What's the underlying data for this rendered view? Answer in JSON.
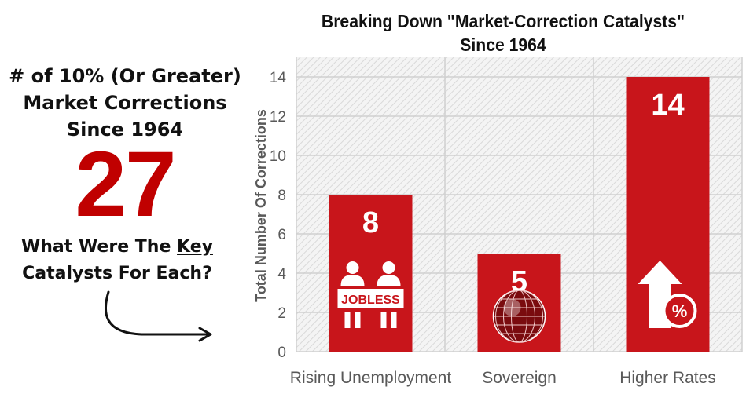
{
  "left_panel": {
    "headline_line1": "# of 10% (Or Greater)",
    "headline_line2": "Market Corrections",
    "headline_line3": "Since 1964",
    "big_number": "27",
    "question_line1_prefix": "What Were The ",
    "question_line1_underlined": "Key",
    "question_line2": "Catalysts For Each?"
  },
  "colors": {
    "accent": "#c00000",
    "bar": "#c8151b",
    "grid": "#d0d0d0",
    "axis_text": "#595959"
  },
  "chart_data": {
    "type": "bar",
    "title": "Breaking Down \"Market-Correction Catalysts\" Since 1964",
    "title_line1": "Breaking Down \"Market-Correction Catalysts\"",
    "title_line2": "Since 1964",
    "xlabel": "",
    "ylabel": "Total Number Of Corrections",
    "categories": [
      "Rising Unemployment",
      "Sovereign",
      "Higher Rates"
    ],
    "values": [
      8,
      5,
      14
    ],
    "data_labels": [
      "8",
      "5",
      "14"
    ],
    "ylim": [
      0,
      14
    ],
    "yticks": [
      0,
      2,
      4,
      6,
      8,
      10,
      12,
      14
    ],
    "grid": true,
    "bar_icons": [
      "jobless-icon",
      "globe-icon",
      "up-arrow-percent-icon"
    ],
    "icon_texts": [
      "JOBLESS",
      "",
      "%"
    ]
  }
}
